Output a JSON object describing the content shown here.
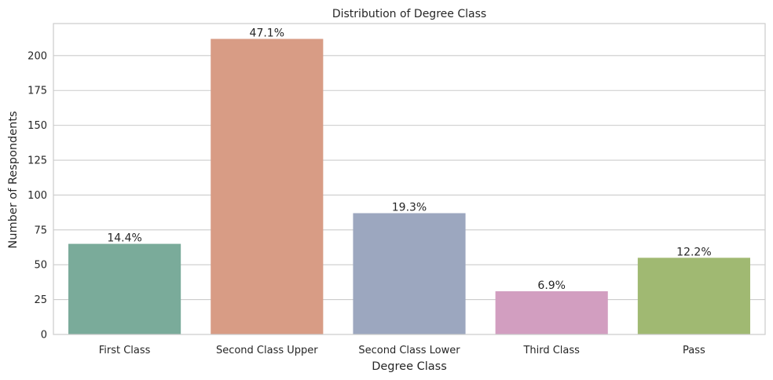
{
  "chart_data": {
    "type": "bar",
    "title": "Distribution of Degree Class",
    "xlabel": "Degree Class",
    "ylabel": "Number of Respondents",
    "categories": [
      "First Class",
      "Second Class Upper",
      "Second Class Lower",
      "Third Class",
      "Pass"
    ],
    "values": [
      65,
      212,
      87,
      31,
      55
    ],
    "data_labels": [
      "14.4%",
      "47.1%",
      "19.3%",
      "6.9%",
      "12.2%"
    ],
    "colors": [
      "#7aab9a",
      "#d89c85",
      "#9ca7bf",
      "#d29ec0",
      "#a0b972"
    ],
    "ylim": [
      0,
      223
    ],
    "yticks": [
      0,
      25,
      50,
      75,
      100,
      125,
      150,
      175,
      200
    ],
    "grid": "horizontal",
    "legend": "none"
  }
}
